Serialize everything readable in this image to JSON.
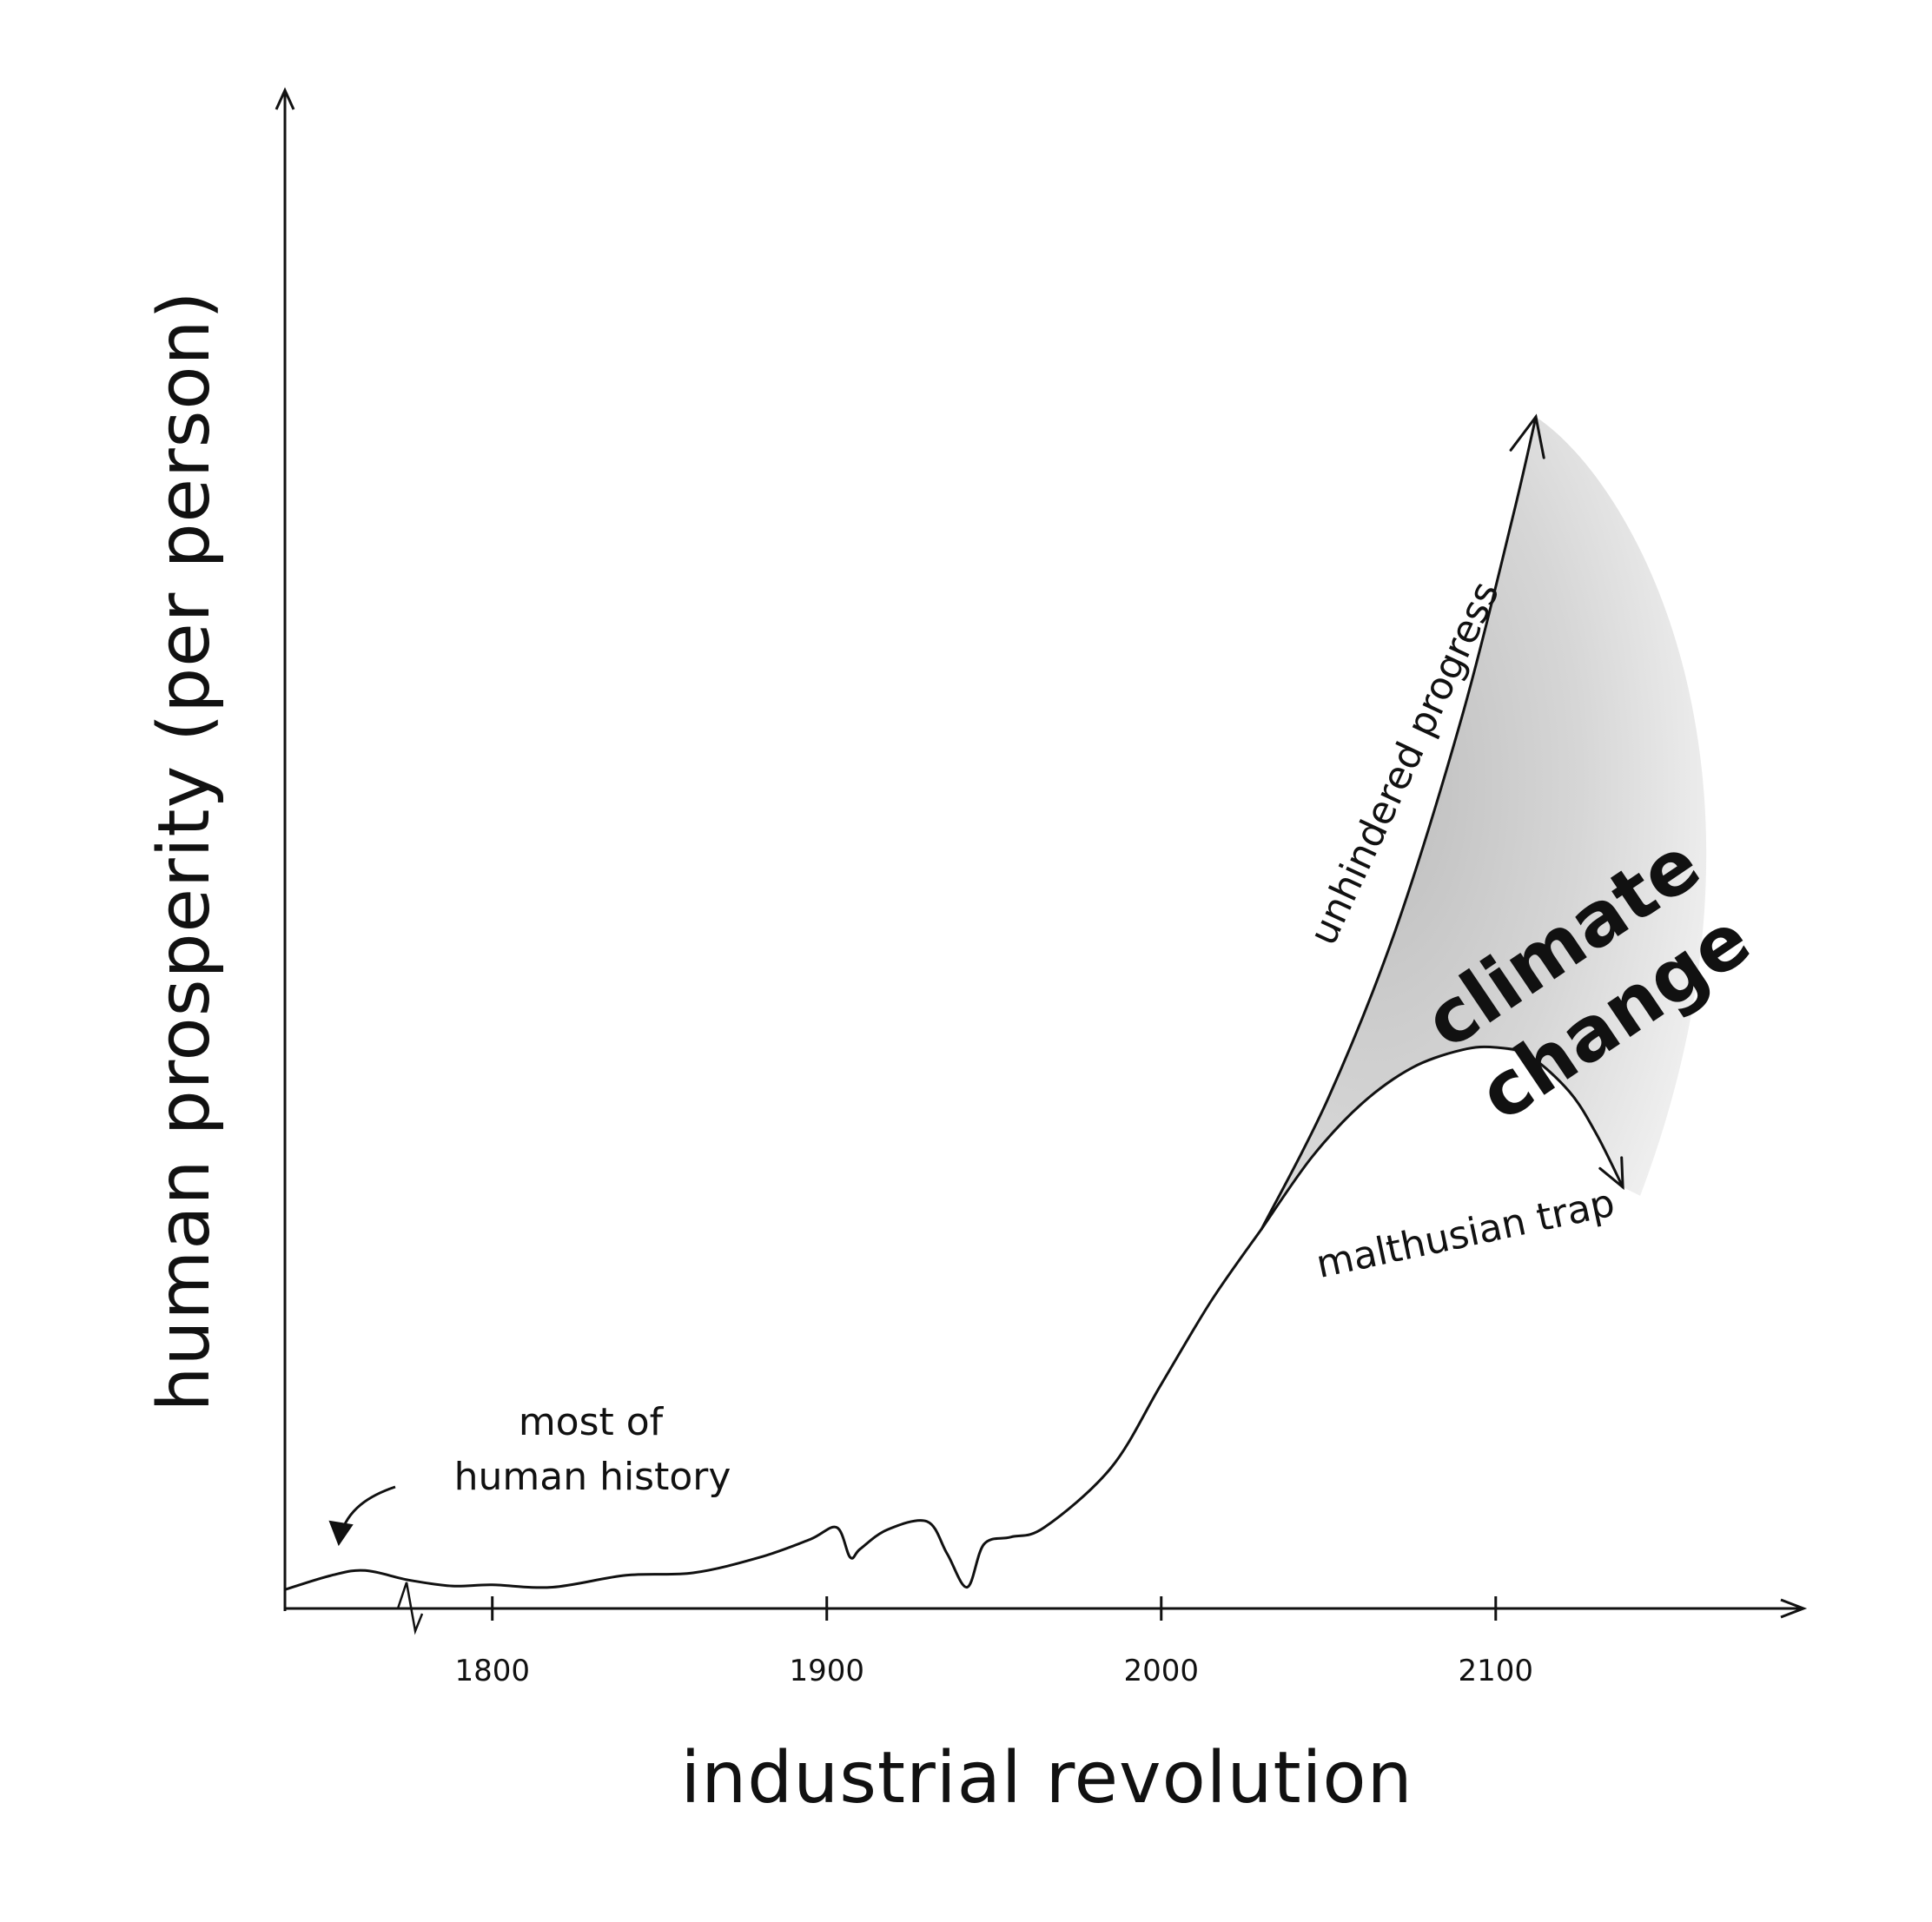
{
  "chart_data": {
    "type": "line",
    "title": "",
    "xlabel": "industrial revolution",
    "ylabel": "human prosperity (per person)",
    "xlim": [
      1738,
      2192
    ],
    "ylim": [
      0,
      100
    ],
    "ticks": [
      1800,
      1900,
      2000,
      2100
    ],
    "grid": false,
    "series": [
      {
        "x": [
          1738,
          1752,
          1762,
          1775,
          1788,
          1800,
          1818,
          1840,
          1860,
          1880,
          1895,
          1903,
          1907,
          1910,
          1918,
          1930,
          1936,
          1942,
          1947,
          1955,
          1965,
          1985,
          2000,
          2015,
          2030
        ],
        "values": [
          1.8,
          3.0,
          3.4,
          2.6,
          2.1,
          2.2,
          2.0,
          3.0,
          3.2,
          4.5,
          6.0,
          7.0,
          4.5,
          5.2,
          6.8,
          7.5,
          4.8,
          2.0,
          5.6,
          6.2,
          7.0,
          12.0,
          19.0,
          26.0,
          32.0
        ]
      },
      {
        "name": "unhindered progress",
        "x": [
          2030,
          2050,
          2070,
          2090,
          2105,
          2112
        ],
        "values": [
          32.0,
          43.0,
          57.0,
          75.0,
          91.5,
          100.0
        ]
      },
      {
        "name": "malthusian trap",
        "x": [
          2030,
          2045,
          2060,
          2075,
          2090,
          2100,
          2110,
          2122,
          2130,
          2138
        ],
        "values": [
          32.0,
          38.0,
          42.5,
          45.5,
          47.0,
          47.2,
          46.5,
          43.5,
          40.0,
          35.5
        ]
      }
    ],
    "annotations": [
      {
        "text_lines": [
          "most of",
          "human history"
        ]
      },
      {
        "text_lines": [
          "climate",
          "change"
        ]
      }
    ]
  }
}
